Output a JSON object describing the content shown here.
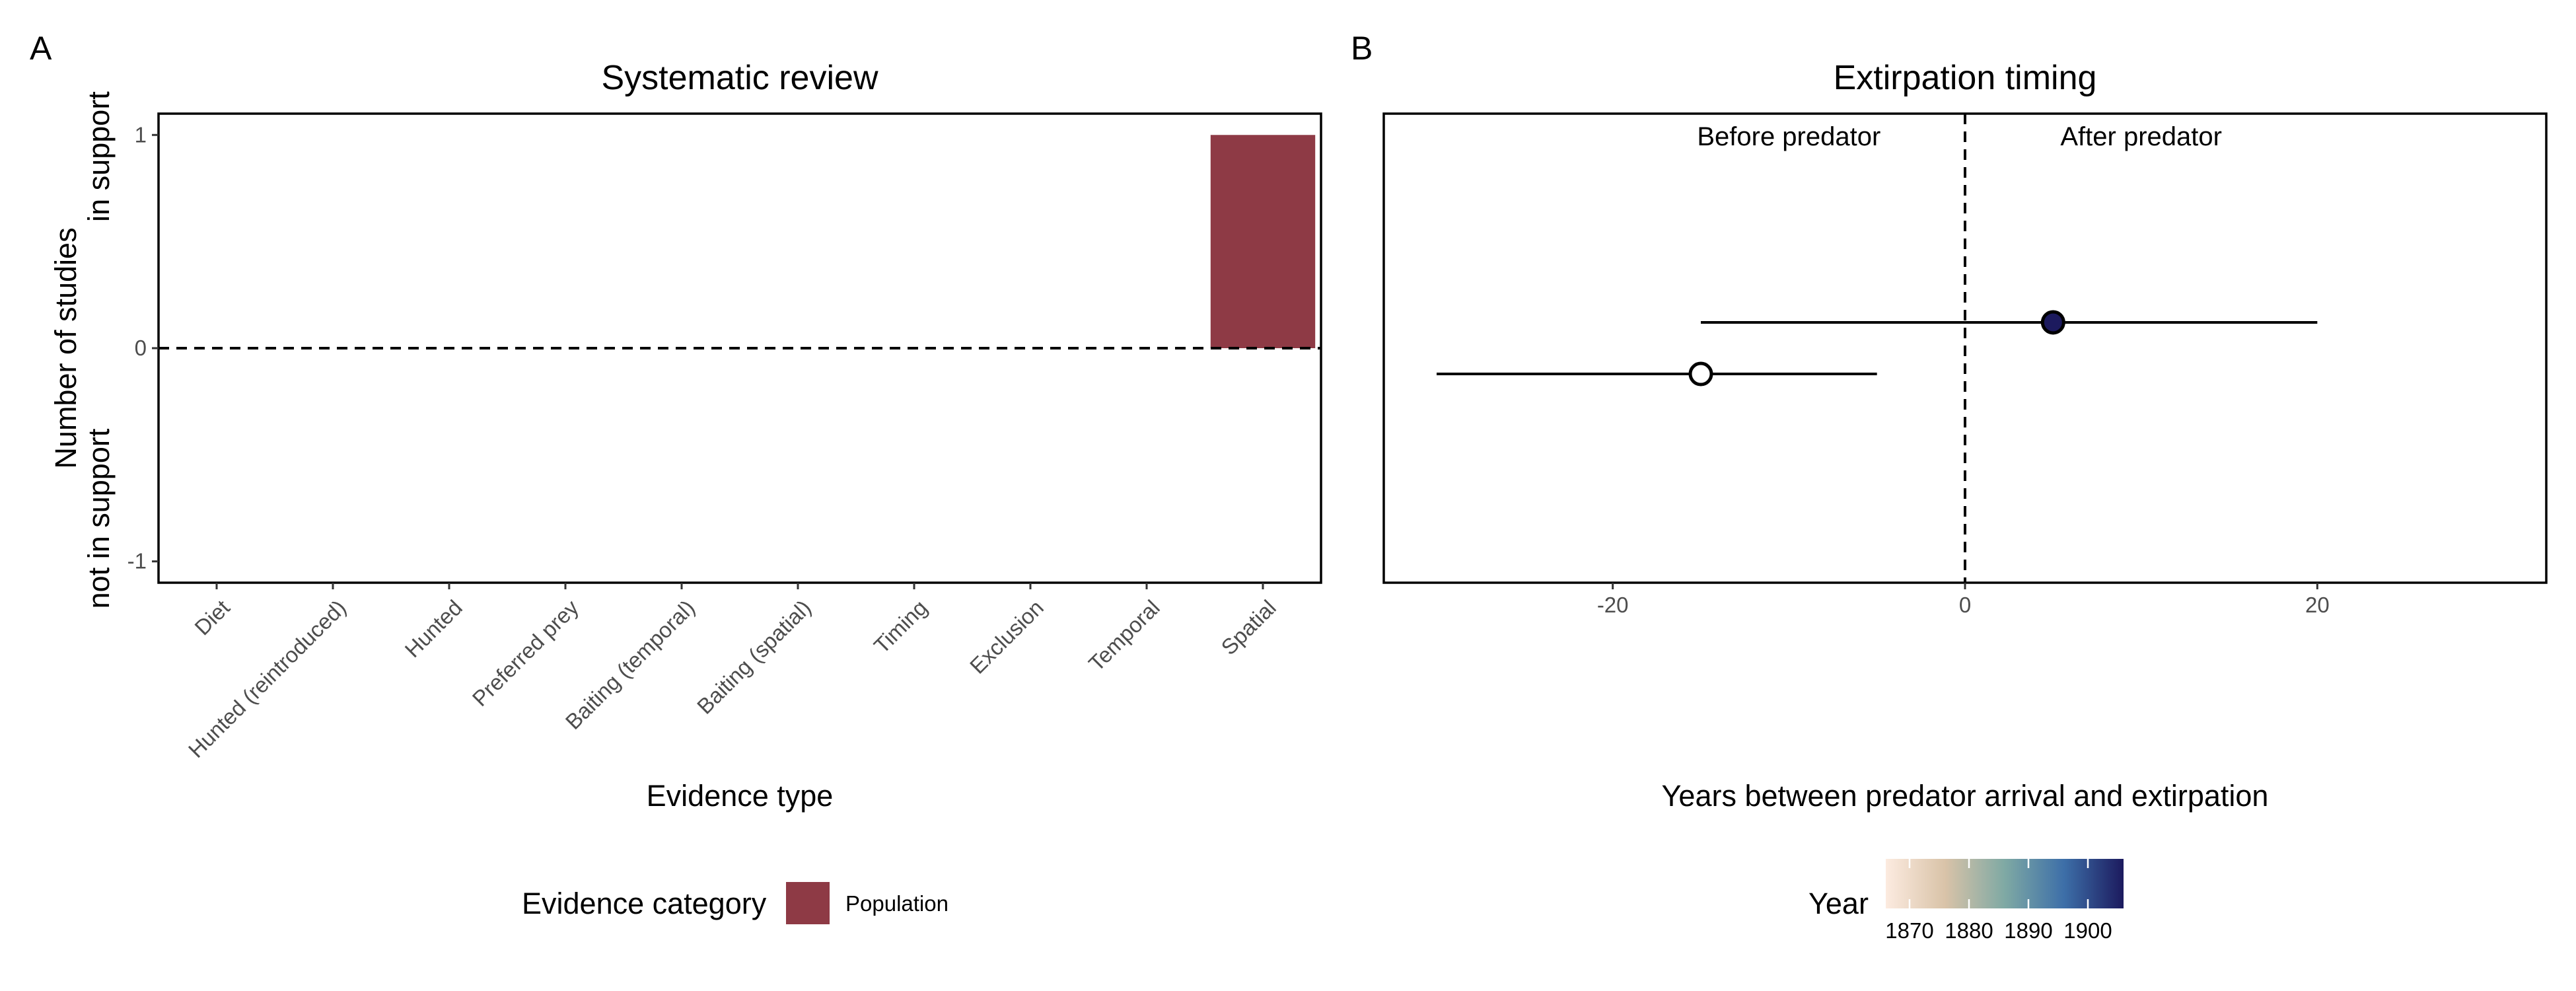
{
  "panels": {
    "a": {
      "label": "A"
    },
    "b": {
      "label": "B"
    }
  },
  "chart_data": [
    {
      "type": "bar",
      "title": "Systematic review",
      "xlabel": "Evidence type",
      "ylabel": "Number of studies",
      "ylabel_top": "in support",
      "ylabel_bottom": "not in support",
      "categories": [
        "Diet",
        "Hunted (reintroduced)",
        "Hunted",
        "Preferred prey",
        "Baiting (temporal)",
        "Baiting (spatial)",
        "Timing",
        "Exclusion",
        "Temporal",
        "Spatial"
      ],
      "series": [
        {
          "name": "Population",
          "color": "#8e3a45",
          "values": [
            0,
            0,
            0,
            0,
            0,
            0,
            0,
            0,
            0,
            1
          ]
        }
      ],
      "ylim": [
        -1.1,
        1.1
      ],
      "yticks": [
        -1,
        0,
        1
      ],
      "reference_line": {
        "y": 0,
        "style": "dashed"
      },
      "legend": {
        "title": "Evidence category",
        "position": "bottom",
        "entries": [
          "Population"
        ]
      },
      "grid": false
    },
    {
      "type": "scatter",
      "title": "Extirpation timing",
      "xlabel": "Years between predator arrival and extirpation",
      "xlim": [
        -33,
        33
      ],
      "xticks": [
        -20,
        0,
        20
      ],
      "reference_line": {
        "x": 0,
        "style": "dashed"
      },
      "annotations": {
        "before": "Before predator",
        "after": "After predator"
      },
      "points": [
        {
          "x": 5,
          "xmin": -15,
          "xmax": 20,
          "fill": "#1c1a5e",
          "row": 1
        },
        {
          "x": -15,
          "xmin": -30,
          "xmax": -5,
          "fill": "#ffffff",
          "row": 2
        }
      ],
      "colorbar": {
        "title": "Year",
        "ticks": [
          1870,
          1880,
          1890,
          1900
        ],
        "range": [
          1866,
          1906
        ],
        "colors": [
          "#fcebe0",
          "#d9c3a8",
          "#7fa9a4",
          "#3d6fa8",
          "#1c1a5e"
        ],
        "position": "bottom"
      },
      "grid": false
    }
  ]
}
